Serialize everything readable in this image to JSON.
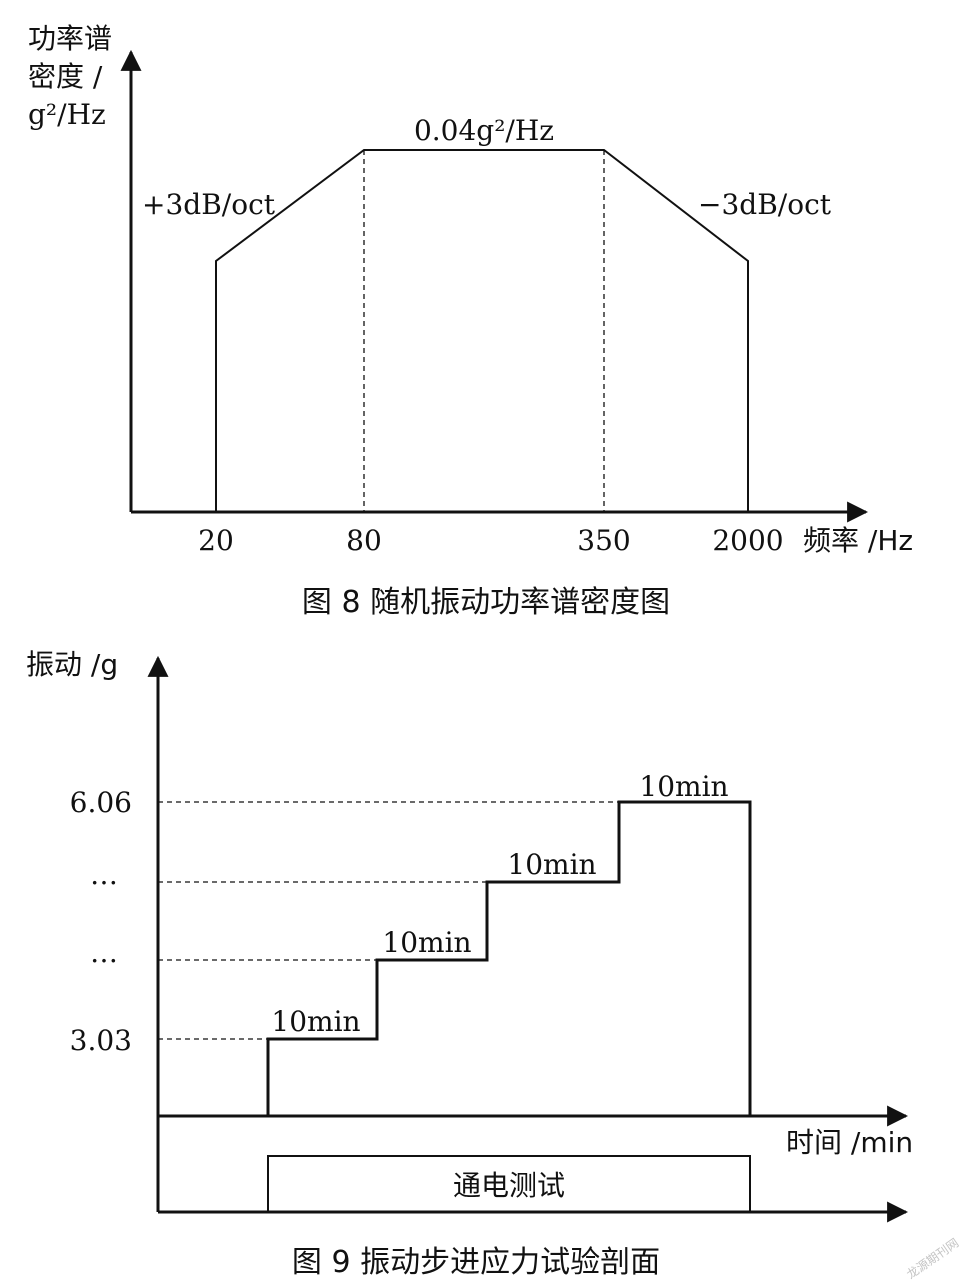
{
  "chart_data": [
    {
      "type": "line",
      "title": "图 8   随机振动功率谱密度图",
      "ylabel_lines": [
        "功率谱",
        "密度 /",
        "g²/Hz"
      ],
      "xlabel": "频率 /Hz",
      "x_ticks": [
        "20",
        "80",
        "350",
        "2000"
      ],
      "points": [
        {
          "x": 20,
          "label": "20"
        },
        {
          "x": 80,
          "label": "80"
        },
        {
          "x": 350,
          "label": "350"
        },
        {
          "x": 2000,
          "label": "2000"
        }
      ],
      "plateau_label": "0.04g²/Hz",
      "rise_label": "+3dB/oct",
      "fall_label": "−3dB/oct"
    },
    {
      "type": "line",
      "title": "图 9   振动步进应力试验剖面",
      "ylabel": "振动 /g",
      "xlabel": "时间 /min",
      "y_ticks": [
        "6.06",
        "…",
        "…",
        "3.03"
      ],
      "steps": [
        {
          "label": "10min"
        },
        {
          "label": "10min"
        },
        {
          "label": "10min"
        },
        {
          "label": "10min"
        }
      ],
      "power_test_label": "通电测试"
    }
  ],
  "watermark": "龙源期刊网"
}
